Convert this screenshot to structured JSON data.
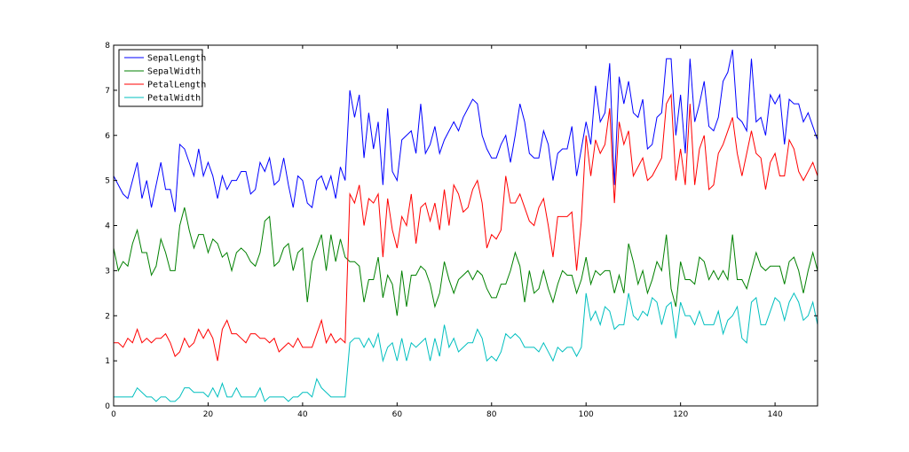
{
  "chart_data": {
    "type": "line",
    "title": "",
    "xlabel": "",
    "ylabel": "",
    "xlim": [
      0,
      149
    ],
    "ylim": [
      0,
      8
    ],
    "xticks": [
      0,
      20,
      40,
      60,
      80,
      100,
      120,
      140
    ],
    "yticks": [
      0,
      1,
      2,
      3,
      4,
      5,
      6,
      7,
      8
    ],
    "grid": false,
    "legend_position": "top-left",
    "series": [
      {
        "name": "SepalLength",
        "color": "#0000ff",
        "values": [
          5.1,
          4.9,
          4.7,
          4.6,
          5.0,
          5.4,
          4.6,
          5.0,
          4.4,
          4.9,
          5.4,
          4.8,
          4.8,
          4.3,
          5.8,
          5.7,
          5.4,
          5.1,
          5.7,
          5.1,
          5.4,
          5.1,
          4.6,
          5.1,
          4.8,
          5.0,
          5.0,
          5.2,
          5.2,
          4.7,
          4.8,
          5.4,
          5.2,
          5.5,
          4.9,
          5.0,
          5.5,
          4.9,
          4.4,
          5.1,
          5.0,
          4.5,
          4.4,
          5.0,
          5.1,
          4.8,
          5.1,
          4.6,
          5.3,
          5.0,
          7.0,
          6.4,
          6.9,
          5.5,
          6.5,
          5.7,
          6.3,
          4.9,
          6.6,
          5.2,
          5.0,
          5.9,
          6.0,
          6.1,
          5.6,
          6.7,
          5.6,
          5.8,
          6.2,
          5.6,
          5.9,
          6.1,
          6.3,
          6.1,
          6.4,
          6.6,
          6.8,
          6.7,
          6.0,
          5.7,
          5.5,
          5.5,
          5.8,
          6.0,
          5.4,
          6.0,
          6.7,
          6.3,
          5.6,
          5.5,
          5.5,
          6.1,
          5.8,
          5.0,
          5.6,
          5.7,
          5.7,
          6.2,
          5.1,
          5.7,
          6.3,
          5.8,
          7.1,
          6.3,
          6.5,
          7.6,
          4.9,
          7.3,
          6.7,
          7.2,
          6.5,
          6.4,
          6.8,
          5.7,
          5.8,
          6.4,
          6.5,
          7.7,
          7.7,
          6.0,
          6.9,
          5.6,
          7.7,
          6.3,
          6.7,
          7.2,
          6.2,
          6.1,
          6.4,
          7.2,
          7.4,
          7.9,
          6.4,
          6.3,
          6.1,
          7.7,
          6.3,
          6.4,
          6.0,
          6.9,
          6.7,
          6.9,
          5.8,
          6.8,
          6.7,
          6.7,
          6.3,
          6.5,
          6.2,
          5.9
        ]
      },
      {
        "name": "SepalWidth",
        "color": "#008000",
        "values": [
          3.5,
          3.0,
          3.2,
          3.1,
          3.6,
          3.9,
          3.4,
          3.4,
          2.9,
          3.1,
          3.7,
          3.4,
          3.0,
          3.0,
          4.0,
          4.4,
          3.9,
          3.5,
          3.8,
          3.8,
          3.4,
          3.7,
          3.6,
          3.3,
          3.4,
          3.0,
          3.4,
          3.5,
          3.4,
          3.2,
          3.1,
          3.4,
          4.1,
          4.2,
          3.1,
          3.2,
          3.5,
          3.6,
          3.0,
          3.4,
          3.5,
          2.3,
          3.2,
          3.5,
          3.8,
          3.0,
          3.8,
          3.2,
          3.7,
          3.3,
          3.2,
          3.2,
          3.1,
          2.3,
          2.8,
          2.8,
          3.3,
          2.4,
          2.9,
          2.7,
          2.0,
          3.0,
          2.2,
          2.9,
          2.9,
          3.1,
          3.0,
          2.7,
          2.2,
          2.5,
          3.2,
          2.8,
          2.5,
          2.8,
          2.9,
          3.0,
          2.8,
          3.0,
          2.9,
          2.6,
          2.4,
          2.4,
          2.7,
          2.7,
          3.0,
          3.4,
          3.1,
          2.3,
          3.0,
          2.5,
          2.6,
          3.0,
          2.6,
          2.3,
          2.7,
          3.0,
          2.9,
          2.9,
          2.5,
          2.8,
          3.3,
          2.7,
          3.0,
          2.9,
          3.0,
          3.0,
          2.5,
          2.9,
          2.5,
          3.6,
          3.2,
          2.7,
          3.0,
          2.5,
          2.8,
          3.2,
          3.0,
          3.8,
          2.6,
          2.2,
          3.2,
          2.8,
          2.8,
          2.7,
          3.3,
          3.2,
          2.8,
          3.0,
          2.8,
          3.0,
          2.8,
          3.8,
          2.8,
          2.8,
          2.6,
          3.0,
          3.4,
          3.1,
          3.0,
          3.1,
          3.1,
          3.1,
          2.7,
          3.2,
          3.3,
          3.0,
          2.5,
          3.0,
          3.4,
          3.0
        ]
      },
      {
        "name": "PetalLength",
        "color": "#ff0000",
        "values": [
          1.4,
          1.4,
          1.3,
          1.5,
          1.4,
          1.7,
          1.4,
          1.5,
          1.4,
          1.5,
          1.5,
          1.6,
          1.4,
          1.1,
          1.2,
          1.5,
          1.3,
          1.4,
          1.7,
          1.5,
          1.7,
          1.5,
          1.0,
          1.7,
          1.9,
          1.6,
          1.6,
          1.5,
          1.4,
          1.6,
          1.6,
          1.5,
          1.5,
          1.4,
          1.5,
          1.2,
          1.3,
          1.4,
          1.3,
          1.5,
          1.3,
          1.3,
          1.3,
          1.6,
          1.9,
          1.4,
          1.6,
          1.4,
          1.5,
          1.4,
          4.7,
          4.5,
          4.9,
          4.0,
          4.6,
          4.5,
          4.7,
          3.3,
          4.6,
          3.9,
          3.5,
          4.2,
          4.0,
          4.7,
          3.6,
          4.4,
          4.5,
          4.1,
          4.5,
          3.9,
          4.8,
          4.0,
          4.9,
          4.7,
          4.3,
          4.4,
          4.8,
          5.0,
          4.5,
          3.5,
          3.8,
          3.7,
          3.9,
          5.1,
          4.5,
          4.5,
          4.7,
          4.4,
          4.1,
          4.0,
          4.4,
          4.6,
          4.0,
          3.3,
          4.2,
          4.2,
          4.2,
          4.3,
          3.0,
          4.1,
          6.0,
          5.1,
          5.9,
          5.6,
          5.8,
          6.6,
          4.5,
          6.3,
          5.8,
          6.1,
          5.1,
          5.3,
          5.5,
          5.0,
          5.1,
          5.3,
          5.5,
          6.7,
          6.9,
          5.0,
          5.7,
          4.9,
          6.7,
          4.9,
          5.7,
          6.0,
          4.8,
          4.9,
          5.6,
          5.8,
          6.1,
          6.4,
          5.6,
          5.1,
          5.6,
          6.1,
          5.6,
          5.5,
          4.8,
          5.4,
          5.6,
          5.1,
          5.1,
          5.9,
          5.7,
          5.2,
          5.0,
          5.2,
          5.4,
          5.1
        ]
      },
      {
        "name": "PetalWidth",
        "color": "#00bfbf",
        "values": [
          0.2,
          0.2,
          0.2,
          0.2,
          0.2,
          0.4,
          0.3,
          0.2,
          0.2,
          0.1,
          0.2,
          0.2,
          0.1,
          0.1,
          0.2,
          0.4,
          0.4,
          0.3,
          0.3,
          0.3,
          0.2,
          0.4,
          0.2,
          0.5,
          0.2,
          0.2,
          0.4,
          0.2,
          0.2,
          0.2,
          0.2,
          0.4,
          0.1,
          0.2,
          0.2,
          0.2,
          0.2,
          0.1,
          0.2,
          0.2,
          0.3,
          0.3,
          0.2,
          0.6,
          0.4,
          0.3,
          0.2,
          0.2,
          0.2,
          0.2,
          1.4,
          1.5,
          1.5,
          1.3,
          1.5,
          1.3,
          1.6,
          1.0,
          1.3,
          1.4,
          1.0,
          1.5,
          1.0,
          1.4,
          1.3,
          1.4,
          1.5,
          1.0,
          1.5,
          1.1,
          1.8,
          1.3,
          1.5,
          1.2,
          1.3,
          1.4,
          1.4,
          1.7,
          1.5,
          1.0,
          1.1,
          1.0,
          1.2,
          1.6,
          1.5,
          1.6,
          1.5,
          1.3,
          1.3,
          1.3,
          1.2,
          1.4,
          1.2,
          1.0,
          1.3,
          1.2,
          1.3,
          1.3,
          1.1,
          1.3,
          2.5,
          1.9,
          2.1,
          1.8,
          2.2,
          2.1,
          1.7,
          1.8,
          1.8,
          2.5,
          2.0,
          1.9,
          2.1,
          2.0,
          2.4,
          2.3,
          1.8,
          2.2,
          2.3,
          1.5,
          2.3,
          2.0,
          2.0,
          1.8,
          2.1,
          1.8,
          1.8,
          1.8,
          2.1,
          1.6,
          1.9,
          2.0,
          2.2,
          1.5,
          1.4,
          2.3,
          2.4,
          1.8,
          1.8,
          2.1,
          2.4,
          2.3,
          1.9,
          2.3,
          2.5,
          2.3,
          1.9,
          2.0,
          2.3,
          1.8
        ]
      }
    ]
  }
}
